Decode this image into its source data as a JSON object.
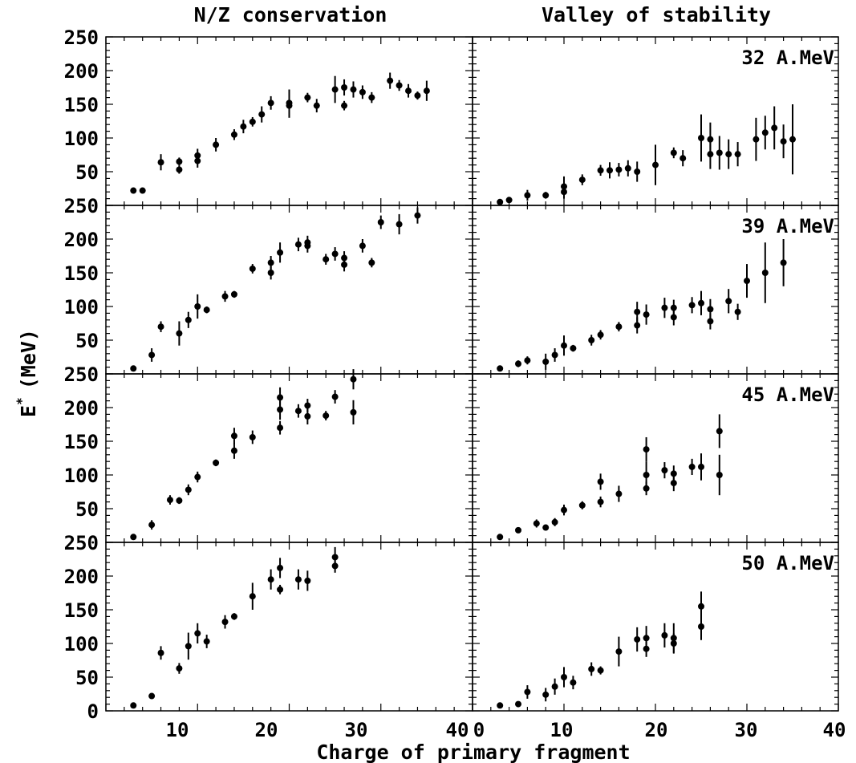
{
  "column_titles": [
    "N/Z conservation",
    "Valley of stability"
  ],
  "xlabel": "Charge of primary fragment",
  "ylabel": "E* (MeV)",
  "ylabel_main": "E",
  "ylabel_sup": "*",
  "ylabel_unit": "(MeV)",
  "energies": [
    "32 A.MeV",
    "39 A.MeV",
    "45 A.MeV",
    "50 A.MeV"
  ],
  "x_ticks": [
    "10",
    "20",
    "30",
    "40"
  ],
  "x_start_tick_right": "0",
  "y_ticks_top": [
    "250",
    "200",
    "150",
    "100",
    "50"
  ],
  "y_ticks_bottom": [
    "250",
    "200",
    "150",
    "100",
    "50",
    "0"
  ],
  "chart_data": [
    {
      "type": "scatter",
      "panel": "N/Z conservation, 32 A.MeV",
      "xlim": [
        0,
        40
      ],
      "ylim": [
        0,
        250
      ],
      "title": "N/Z conservation",
      "ylabel": "E* (MeV)",
      "points": [
        [
          3,
          22,
          0
        ],
        [
          4,
          22,
          0
        ],
        [
          6,
          64,
          12
        ],
        [
          8,
          65,
          6
        ],
        [
          8,
          53,
          6
        ],
        [
          10,
          74,
          10
        ],
        [
          10,
          66,
          10
        ],
        [
          12,
          90,
          10
        ],
        [
          14,
          105,
          8
        ],
        [
          15,
          117,
          10
        ],
        [
          16,
          124,
          7
        ],
        [
          17,
          135,
          12
        ],
        [
          18,
          152,
          10
        ],
        [
          20,
          152,
          20
        ],
        [
          20,
          148,
          18
        ],
        [
          22,
          160,
          7
        ],
        [
          23,
          148,
          10
        ],
        [
          25,
          172,
          20
        ],
        [
          26,
          175,
          12
        ],
        [
          26,
          148,
          7
        ],
        [
          27,
          172,
          12
        ],
        [
          28,
          168,
          10
        ],
        [
          29,
          160,
          8
        ],
        [
          31,
          185,
          12
        ],
        [
          32,
          178,
          8
        ],
        [
          33,
          170,
          10
        ],
        [
          34,
          163,
          6
        ],
        [
          35,
          170,
          15
        ]
      ]
    },
    {
      "type": "scatter",
      "panel": "Valley of stability, 32 A.MeV",
      "xlim": [
        0,
        40
      ],
      "ylim": [
        0,
        250
      ],
      "title": "Valley of stability",
      "annotation": "32 A.MeV",
      "points": [
        [
          3,
          5,
          0
        ],
        [
          4,
          8,
          0
        ],
        [
          6,
          15,
          8
        ],
        [
          8,
          15,
          5
        ],
        [
          10,
          28,
          15
        ],
        [
          10,
          20,
          10
        ],
        [
          12,
          38,
          8
        ],
        [
          14,
          52,
          8
        ],
        [
          15,
          52,
          12
        ],
        [
          16,
          53,
          10
        ],
        [
          17,
          55,
          12
        ],
        [
          18,
          50,
          15
        ],
        [
          20,
          60,
          30
        ],
        [
          22,
          78,
          8
        ],
        [
          23,
          70,
          12
        ],
        [
          25,
          100,
          35
        ],
        [
          26,
          98,
          25
        ],
        [
          26,
          76,
          22
        ],
        [
          27,
          78,
          25
        ],
        [
          28,
          76,
          22
        ],
        [
          29,
          76,
          18
        ],
        [
          31,
          98,
          32
        ],
        [
          32,
          108,
          25
        ],
        [
          33,
          115,
          32
        ],
        [
          34,
          95,
          25
        ],
        [
          35,
          98,
          52
        ]
      ]
    },
    {
      "type": "scatter",
      "panel": "N/Z conservation, 39 A.MeV",
      "xlim": [
        0,
        40
      ],
      "ylim": [
        0,
        250
      ],
      "ylabel": "E* (MeV)",
      "points": [
        [
          3,
          8,
          0
        ],
        [
          5,
          28,
          10
        ],
        [
          6,
          70,
          8
        ],
        [
          8,
          60,
          18
        ],
        [
          9,
          80,
          12
        ],
        [
          10,
          100,
          18
        ],
        [
          11,
          95,
          5
        ],
        [
          13,
          115,
          8
        ],
        [
          14,
          118,
          5
        ],
        [
          16,
          156,
          7
        ],
        [
          18,
          165,
          10
        ],
        [
          18,
          150,
          10
        ],
        [
          19,
          180,
          15
        ],
        [
          21,
          192,
          10
        ],
        [
          22,
          195,
          10
        ],
        [
          22,
          190,
          10
        ],
        [
          24,
          170,
          8
        ],
        [
          25,
          178,
          10
        ],
        [
          26,
          172,
          10
        ],
        [
          26,
          162,
          10
        ],
        [
          28,
          190,
          10
        ],
        [
          29,
          165,
          7
        ],
        [
          30,
          225,
          10
        ],
        [
          32,
          222,
          15
        ],
        [
          34,
          235,
          12
        ]
      ]
    },
    {
      "type": "scatter",
      "panel": "Valley of stability, 39 A.MeV",
      "xlim": [
        0,
        40
      ],
      "ylim": [
        0,
        250
      ],
      "annotation": "39 A.MeV",
      "points": [
        [
          3,
          8,
          0
        ],
        [
          5,
          15,
          5
        ],
        [
          6,
          20,
          6
        ],
        [
          8,
          18,
          12
        ],
        [
          9,
          28,
          10
        ],
        [
          10,
          42,
          15
        ],
        [
          11,
          38,
          5
        ],
        [
          13,
          50,
          8
        ],
        [
          14,
          58,
          7
        ],
        [
          16,
          70,
          7
        ],
        [
          18,
          92,
          15
        ],
        [
          18,
          72,
          12
        ],
        [
          19,
          88,
          15
        ],
        [
          21,
          98,
          15
        ],
        [
          22,
          98,
          12
        ],
        [
          22,
          84,
          12
        ],
        [
          24,
          102,
          12
        ],
        [
          25,
          105,
          18
        ],
        [
          26,
          96,
          15
        ],
        [
          26,
          78,
          12
        ],
        [
          28,
          108,
          18
        ],
        [
          29,
          92,
          12
        ],
        [
          30,
          138,
          25
        ],
        [
          32,
          150,
          45
        ],
        [
          34,
          165,
          35
        ]
      ]
    },
    {
      "type": "scatter",
      "panel": "N/Z conservation, 45 A.MeV",
      "xlim": [
        0,
        40
      ],
      "ylim": [
        0,
        250
      ],
      "ylabel": "E* (MeV)",
      "points": [
        [
          3,
          8,
          0
        ],
        [
          5,
          26,
          7
        ],
        [
          7,
          63,
          7
        ],
        [
          8,
          62,
          5
        ],
        [
          9,
          78,
          8
        ],
        [
          10,
          97,
          8
        ],
        [
          12,
          118,
          5
        ],
        [
          14,
          158,
          12
        ],
        [
          14,
          136,
          12
        ],
        [
          16,
          156,
          10
        ],
        [
          19,
          215,
          15
        ],
        [
          19,
          197,
          15
        ],
        [
          19,
          170,
          10
        ],
        [
          21,
          195,
          10
        ],
        [
          22,
          203,
          10
        ],
        [
          22,
          187,
          12
        ],
        [
          24,
          188,
          7
        ],
        [
          25,
          216,
          10
        ],
        [
          27,
          242,
          15
        ],
        [
          27,
          193,
          18
        ]
      ]
    },
    {
      "type": "scatter",
      "panel": "Valley of stability, 45 A.MeV",
      "xlim": [
        0,
        40
      ],
      "ylim": [
        0,
        250
      ],
      "annotation": "45 A.MeV",
      "points": [
        [
          3,
          8,
          0
        ],
        [
          5,
          18,
          4
        ],
        [
          7,
          28,
          6
        ],
        [
          8,
          22,
          4
        ],
        [
          9,
          30,
          6
        ],
        [
          10,
          48,
          8
        ],
        [
          12,
          55,
          6
        ],
        [
          14,
          90,
          12
        ],
        [
          14,
          60,
          8
        ],
        [
          16,
          72,
          12
        ],
        [
          19,
          138,
          18
        ],
        [
          19,
          100,
          20
        ],
        [
          19,
          80,
          10
        ],
        [
          21,
          107,
          12
        ],
        [
          22,
          102,
          12
        ],
        [
          22,
          88,
          12
        ],
        [
          24,
          112,
          12
        ],
        [
          25,
          112,
          20
        ],
        [
          27,
          165,
          25
        ],
        [
          27,
          100,
          30
        ]
      ]
    },
    {
      "type": "scatter",
      "panel": "N/Z conservation, 50 A.MeV",
      "xlim": [
        0,
        40
      ],
      "ylim": [
        0,
        250
      ],
      "xlabel": "Charge of primary fragment",
      "ylabel": "E* (MeV)",
      "points": [
        [
          3,
          8,
          0
        ],
        [
          5,
          22,
          0
        ],
        [
          6,
          86,
          10
        ],
        [
          8,
          63,
          8
        ],
        [
          9,
          96,
          20
        ],
        [
          10,
          115,
          15
        ],
        [
          11,
          103,
          10
        ],
        [
          13,
          132,
          10
        ],
        [
          14,
          140,
          5
        ],
        [
          16,
          170,
          20
        ],
        [
          18,
          195,
          15
        ],
        [
          19,
          212,
          15
        ],
        [
          19,
          180,
          7
        ],
        [
          21,
          195,
          15
        ],
        [
          22,
          193,
          15
        ],
        [
          25,
          228,
          15
        ],
        [
          25,
          215,
          10
        ]
      ]
    },
    {
      "type": "scatter",
      "panel": "Valley of stability, 50 A.MeV",
      "xlim": [
        0,
        40
      ],
      "ylim": [
        0,
        250
      ],
      "xlabel": "Charge of primary fragment",
      "annotation": "50 A.MeV",
      "points": [
        [
          3,
          8,
          0
        ],
        [
          5,
          10,
          3
        ],
        [
          6,
          28,
          10
        ],
        [
          8,
          24,
          10
        ],
        [
          9,
          36,
          12
        ],
        [
          10,
          50,
          15
        ],
        [
          11,
          42,
          10
        ],
        [
          13,
          62,
          10
        ],
        [
          14,
          60,
          6
        ],
        [
          16,
          88,
          22
        ],
        [
          18,
          106,
          18
        ],
        [
          19,
          108,
          18
        ],
        [
          19,
          92,
          12
        ],
        [
          21,
          112,
          18
        ],
        [
          22,
          108,
          22
        ],
        [
          22,
          100,
          15
        ],
        [
          25,
          155,
          22
        ],
        [
          25,
          125,
          20
        ]
      ]
    }
  ]
}
